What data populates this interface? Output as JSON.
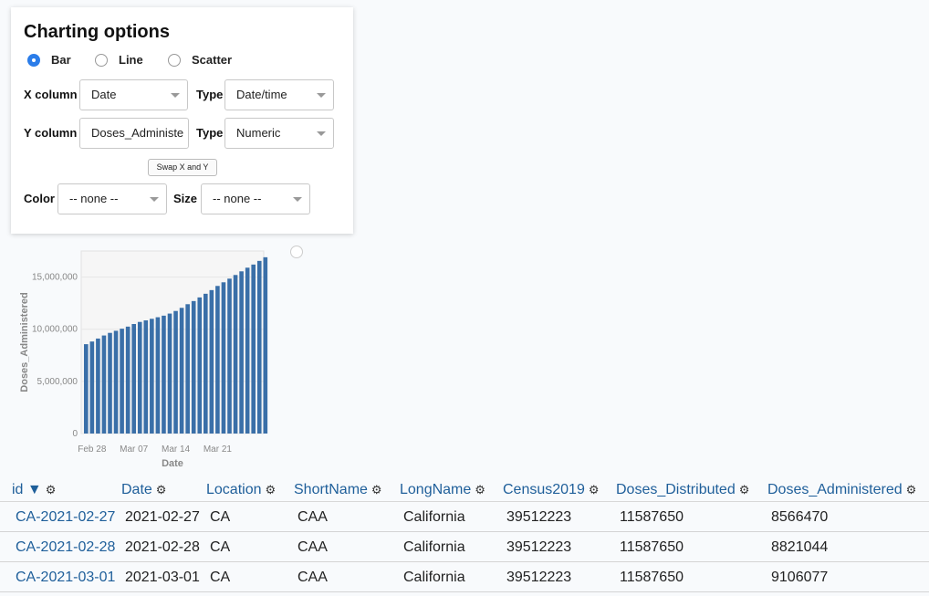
{
  "panel": {
    "title": "Charting options",
    "chart_types": [
      "Bar",
      "Line",
      "Scatter"
    ],
    "selected_type": "Bar",
    "x_column_label": "X column",
    "x_column_value": "Date",
    "x_type_label": "Type",
    "x_type_value": "Date/time",
    "y_column_label": "Y column",
    "y_column_value": "Doses_Administe",
    "y_type_label": "Type",
    "y_type_value": "Numeric",
    "swap_label": "Swap X and Y",
    "color_label": "Color",
    "color_value": "-- none --",
    "size_label": "Size",
    "size_value": "-- none --"
  },
  "chart_data": {
    "type": "bar",
    "xlabel": "Date",
    "ylabel": "Doses_Administered",
    "ylim": [
      0,
      17500000
    ],
    "yticks": [
      0,
      5000000,
      10000000,
      15000000
    ],
    "ytick_labels": [
      "0",
      "5,000,000",
      "10,000,000",
      "15,000,000"
    ],
    "xtick_labels": [
      "Feb 28",
      "Mar 07",
      "Mar 14",
      "Mar 21"
    ],
    "bar_color": "#3a6fa8",
    "grid": true,
    "categories": [
      "2021-02-27",
      "2021-02-28",
      "2021-03-01",
      "2021-03-02",
      "2021-03-03",
      "2021-03-04",
      "2021-03-05",
      "2021-03-06",
      "2021-03-07",
      "2021-03-08",
      "2021-03-09",
      "2021-03-10",
      "2021-03-11",
      "2021-03-12",
      "2021-03-13",
      "2021-03-14",
      "2021-03-15",
      "2021-03-16",
      "2021-03-17",
      "2021-03-18",
      "2021-03-19",
      "2021-03-20",
      "2021-03-21",
      "2021-03-22",
      "2021-03-23",
      "2021-03-24",
      "2021-03-25",
      "2021-03-26",
      "2021-03-27",
      "2021-03-28",
      "2021-03-29"
    ],
    "values": [
      8566470,
      8821044,
      9106077,
      9400000,
      9650000,
      9850000,
      10050000,
      10250000,
      10500000,
      10700000,
      10850000,
      11000000,
      11150000,
      11300000,
      11500000,
      11750000,
      12050000,
      12400000,
      12700000,
      13050000,
      13400000,
      13750000,
      14150000,
      14500000,
      14850000,
      15200000,
      15550000,
      15900000,
      16200000,
      16550000,
      16900000
    ]
  },
  "table": {
    "columns": [
      "id ▼",
      "Date",
      "Location",
      "ShortName",
      "LongName",
      "Census2019",
      "Doses_Distributed",
      "Doses_Administered"
    ],
    "rows": [
      [
        "CA-2021-02-27",
        "2021-02-27",
        "CA",
        "CAA",
        "California",
        "39512223",
        "11587650",
        "8566470"
      ],
      [
        "CA-2021-02-28",
        "2021-02-28",
        "CA",
        "CAA",
        "California",
        "39512223",
        "11587650",
        "8821044"
      ],
      [
        "CA-2021-03-01",
        "2021-03-01",
        "CA",
        "CAA",
        "California",
        "39512223",
        "11587650",
        "9106077"
      ]
    ]
  },
  "icons": {
    "gear": "⚙"
  }
}
